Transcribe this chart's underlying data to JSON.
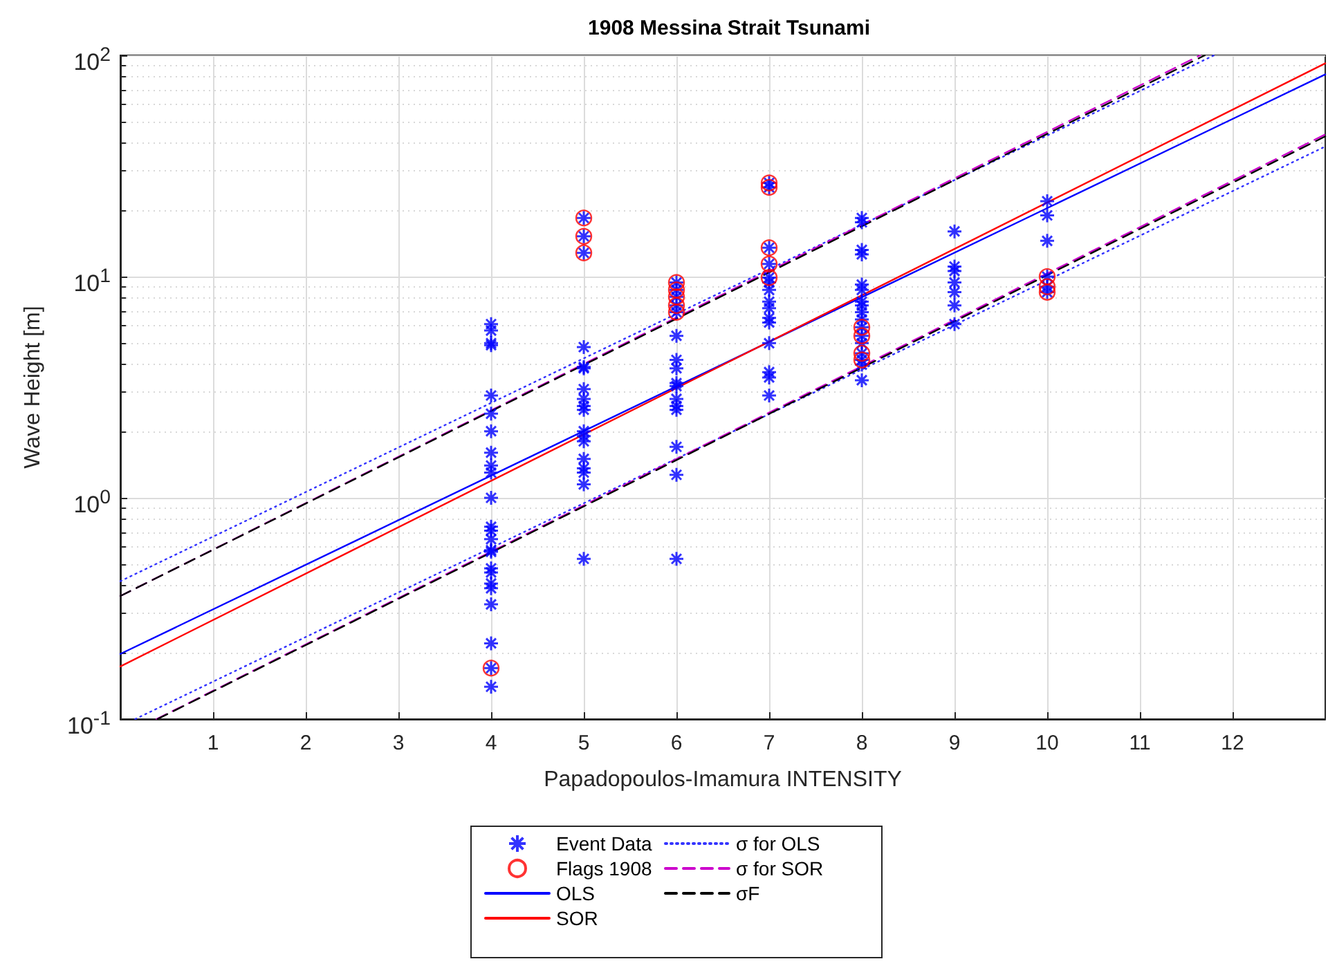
{
  "chart_data": {
    "type": "scatter",
    "title": "1908 Messina Strait Tsunami",
    "xlabel": "Papadopoulos-Imamura INTENSITY",
    "ylabel": "Wave Height [m]",
    "log": "y",
    "grid": true,
    "legend": "bottom",
    "xlim": [
      0,
      13
    ],
    "xticks": [
      1,
      2,
      3,
      4,
      5,
      6,
      7,
      8,
      9,
      10,
      11,
      12
    ],
    "ylim": [
      0.1,
      100
    ],
    "yticks": [
      {
        "value": 0.1,
        "label": "10$^{-1}$"
      },
      {
        "value": 1,
        "label": "10$^{0}$"
      },
      {
        "value": 10,
        "label": "10$^{1}$"
      },
      {
        "value": 100,
        "label": "10$^{2}$"
      }
    ],
    "series": [
      {
        "name": "Event Data",
        "marker": "cross",
        "color": "#0000ff",
        "x": [
          4,
          4,
          4,
          4,
          4,
          4,
          4,
          4,
          4,
          4,
          4,
          4,
          4,
          4,
          4,
          4,
          4,
          4,
          4,
          4,
          4,
          4,
          4,
          4,
          5,
          5,
          5,
          5,
          5,
          5,
          5,
          5,
          5,
          5,
          5,
          5,
          5,
          5,
          5,
          5,
          5,
          5,
          6,
          6,
          6,
          6,
          6,
          6,
          6,
          6,
          6,
          6,
          6,
          6,
          6,
          6,
          6,
          6,
          7,
          7,
          7,
          7,
          7,
          7,
          7,
          7,
          7,
          7,
          7,
          7,
          7,
          7,
          7,
          8,
          8,
          8,
          8,
          8,
          8,
          8,
          8,
          8,
          8,
          8,
          8,
          8,
          8,
          8,
          8,
          8,
          9,
          9,
          9,
          9,
          9,
          9,
          9,
          10,
          10,
          10,
          10,
          10,
          10
        ],
        "values": [
          6.1,
          5.7,
          5.0,
          4.9,
          2.9,
          2.4,
          2.0,
          1.6,
          1.4,
          1.3,
          1.0,
          0.74,
          0.71,
          0.65,
          0.58,
          0.57,
          0.48,
          0.46,
          0.41,
          0.39,
          0.33,
          0.22,
          0.17,
          0.14,
          18.4,
          15.2,
          12.8,
          4.8,
          3.9,
          3.85,
          3.1,
          2.8,
          2.6,
          2.5,
          2.0,
          1.9,
          1.8,
          1.5,
          1.36,
          1.3,
          1.15,
          0.53,
          9.4,
          8.7,
          8.1,
          7.4,
          6.9,
          5.4,
          4.2,
          3.85,
          3.3,
          3.2,
          2.8,
          2.6,
          2.5,
          1.7,
          1.27,
          0.53,
          26.5,
          25.3,
          13.5,
          11.4,
          9.9,
          9.4,
          8.7,
          7.7,
          7.2,
          6.5,
          6.2,
          5.0,
          3.7,
          3.5,
          2.9,
          18.4,
          17.6,
          13.2,
          12.6,
          9.2,
          8.7,
          7.7,
          7.4,
          6.9,
          6.4,
          5.9,
          5.4,
          5.0,
          4.5,
          4.2,
          4.0,
          3.4,
          16.0,
          11.1,
          10.6,
          9.4,
          8.5,
          7.4,
          6.1,
          21.9,
          18.9,
          14.5,
          10.0,
          9.0,
          8.5
        ]
      },
      {
        "name": "Flags 1908",
        "marker": "circle",
        "color": "#ff0000",
        "x": [
          4,
          5,
          5,
          5,
          6,
          6,
          6,
          6,
          6,
          7,
          7,
          7,
          7,
          7,
          8,
          8,
          8,
          8,
          10,
          10,
          10
        ],
        "values": [
          0.17,
          18.4,
          15.2,
          12.8,
          9.4,
          8.7,
          8.1,
          7.4,
          6.9,
          26.5,
          25.3,
          13.5,
          11.4,
          9.9,
          5.9,
          5.4,
          4.5,
          4.2,
          10.0,
          9.0,
          8.5
        ]
      },
      {
        "name": "OLS",
        "type": "line",
        "line_style": "solid",
        "color": "#0000ff",
        "x": [
          0,
          13
        ],
        "values": [
          0.197,
          82
        ]
      },
      {
        "name": "SOR",
        "type": "line",
        "line_style": "solid",
        "color": "#ff0000",
        "x": [
          0,
          13
        ],
        "values": [
          0.173,
          92
        ]
      },
      {
        "name": "σ for OLS",
        "type": "line",
        "line_style": "dotted",
        "color": "#3333ff",
        "x": [
          0,
          11.8
        ],
        "values": [
          0.42,
          100
        ]
      },
      {
        "type": "line",
        "line_style": "dotted",
        "color": "#3333ff",
        "x": [
          0.16,
          13
        ],
        "values": [
          0.1,
          38.7
        ]
      },
      {
        "name": "σ for SOR",
        "type": "line",
        "line_style": "dashed",
        "color": "#cc00cc",
        "x": [
          0,
          11.65
        ],
        "values": [
          0.36,
          100
        ]
      },
      {
        "type": "line",
        "line_style": "dashed",
        "color": "#cc00cc",
        "x": [
          0.39,
          13
        ],
        "values": [
          0.1,
          43.9
        ]
      },
      {
        "name": "σF",
        "type": "line",
        "line_style": "dashed",
        "color": "#000000",
        "x": [
          0,
          11.7
        ],
        "values": [
          0.36,
          100
        ]
      },
      {
        "type": "line",
        "line_style": "dashed",
        "color": "#000000",
        "x": [
          0.4,
          13
        ],
        "values": [
          0.1,
          43
        ]
      }
    ]
  }
}
